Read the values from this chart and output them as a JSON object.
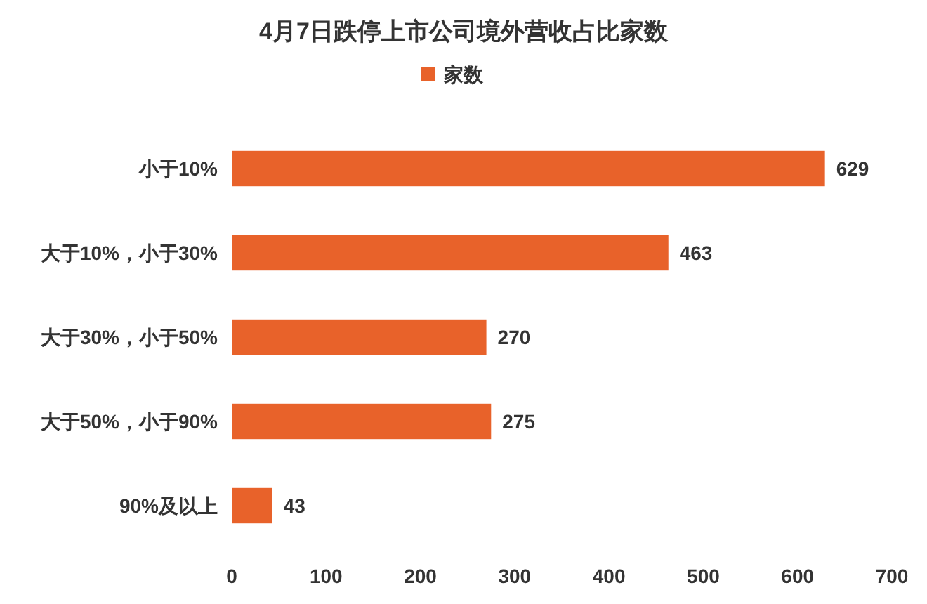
{
  "chart_data": {
    "type": "bar",
    "orientation": "horizontal",
    "title": "4月7日跌停上市公司境外营收占比家数",
    "categories": [
      "小于10%",
      "大于10%，小于30%",
      "大于30%，小于50%",
      "大于50%，小于90%",
      "90%及以上"
    ],
    "series": [
      {
        "name": "家数",
        "color": "#e8622a",
        "values": [
          629,
          463,
          270,
          275,
          43
        ]
      }
    ],
    "xlim": [
      0,
      700
    ],
    "xticks": [
      0,
      100,
      200,
      300,
      400,
      500,
      600,
      700
    ],
    "data_labels": true,
    "legend": "top",
    "grid": false
  }
}
